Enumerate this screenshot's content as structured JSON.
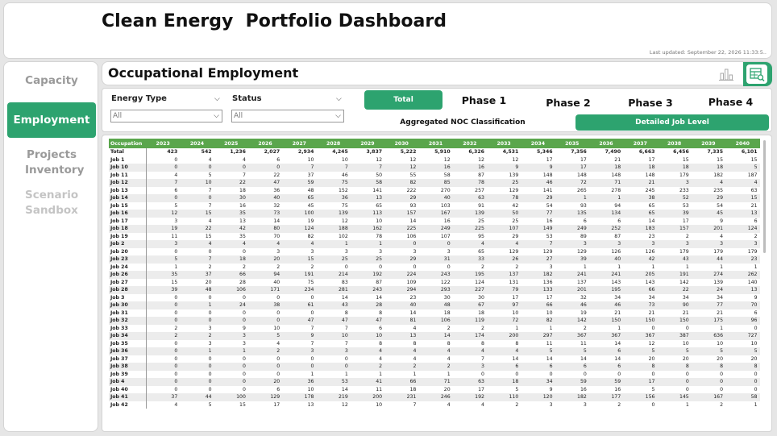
{
  "header": {
    "title": "Clean Energy  Portfolio Dashboard",
    "last_updated": "Last updated: September 22, 2026 11:33:5.."
  },
  "nav": {
    "items": [
      {
        "label": "Capacity"
      },
      {
        "label": "Employment"
      },
      {
        "label": "Projects Inventory"
      },
      {
        "label": "Scenario Sandbox"
      }
    ]
  },
  "section": {
    "title": "Occupational Employment"
  },
  "filters": {
    "energy_type": {
      "label": "Energy Type",
      "value": "All"
    },
    "status": {
      "label": "Status",
      "value": "All"
    }
  },
  "phases": {
    "total": "Total",
    "phase1": "Phase 1",
    "phase2": "Phase 2",
    "phase3": "Phase 3",
    "phase4": "Phase 4"
  },
  "levels": {
    "aggregated": "Aggregated NOC Classification",
    "detailed": "Detailed Job Level"
  },
  "colors": {
    "accent": "#2da36f",
    "table_header": "#5aa64c"
  },
  "icons": {
    "chart": "bar-chart-icon",
    "table": "table-search-icon"
  },
  "table": {
    "columns": [
      "Occupation",
      "2023",
      "2024",
      "2025",
      "2026",
      "2027",
      "2028",
      "2029",
      "2030",
      "2031",
      "2032",
      "2033",
      "2034",
      "2035",
      "2036",
      "2037",
      "2038",
      "2039",
      "2040"
    ],
    "rows": [
      [
        "Total",
        "423",
        "542",
        "1,236",
        "2,027",
        "2,934",
        "4,245",
        "3,837",
        "5,222",
        "5,910",
        "6,326",
        "4,531",
        "5,346",
        "7,356",
        "7,490",
        "6,663",
        "6,456",
        "7,335",
        "6,101"
      ],
      [
        "Job 1",
        "0",
        "4",
        "4",
        "6",
        "10",
        "10",
        "12",
        "12",
        "12",
        "12",
        "12",
        "17",
        "17",
        "21",
        "17",
        "15",
        "15",
        "15"
      ],
      [
        "Job 10",
        "0",
        "0",
        "0",
        "0",
        "7",
        "7",
        "7",
        "12",
        "16",
        "16",
        "9",
        "9",
        "17",
        "18",
        "18",
        "18",
        "18",
        "5"
      ],
      [
        "Job 11",
        "4",
        "5",
        "7",
        "22",
        "37",
        "46",
        "50",
        "55",
        "58",
        "87",
        "139",
        "148",
        "148",
        "148",
        "148",
        "179",
        "182",
        "187"
      ],
      [
        "Job 12",
        "7",
        "10",
        "22",
        "47",
        "59",
        "75",
        "58",
        "82",
        "85",
        "78",
        "25",
        "46",
        "72",
        "71",
        "21",
        "3",
        "4",
        "4"
      ],
      [
        "Job 13",
        "6",
        "7",
        "18",
        "36",
        "48",
        "152",
        "141",
        "222",
        "270",
        "257",
        "129",
        "141",
        "265",
        "278",
        "245",
        "233",
        "235",
        "63"
      ],
      [
        "Job 14",
        "0",
        "0",
        "30",
        "40",
        "65",
        "36",
        "13",
        "29",
        "40",
        "63",
        "78",
        "29",
        "1",
        "1",
        "38",
        "52",
        "29",
        "15"
      ],
      [
        "Job 15",
        "5",
        "7",
        "16",
        "32",
        "45",
        "75",
        "65",
        "93",
        "103",
        "91",
        "42",
        "54",
        "93",
        "94",
        "65",
        "53",
        "54",
        "21"
      ],
      [
        "Job 16",
        "12",
        "15",
        "35",
        "73",
        "100",
        "139",
        "113",
        "157",
        "167",
        "139",
        "50",
        "77",
        "135",
        "134",
        "65",
        "39",
        "45",
        "13"
      ],
      [
        "Job 17",
        "3",
        "4",
        "13",
        "14",
        "19",
        "12",
        "10",
        "14",
        "16",
        "25",
        "25",
        "16",
        "6",
        "6",
        "14",
        "17",
        "9",
        "6"
      ],
      [
        "Job 18",
        "19",
        "22",
        "42",
        "80",
        "124",
        "188",
        "162",
        "225",
        "249",
        "225",
        "107",
        "149",
        "249",
        "252",
        "183",
        "157",
        "201",
        "124"
      ],
      [
        "Job 19",
        "11",
        "15",
        "35",
        "70",
        "82",
        "102",
        "78",
        "106",
        "107",
        "95",
        "29",
        "53",
        "89",
        "87",
        "23",
        "2",
        "4",
        "2"
      ],
      [
        "Job 2",
        "3",
        "4",
        "4",
        "4",
        "4",
        "1",
        "1",
        "0",
        "0",
        "4",
        "4",
        "7",
        "3",
        "3",
        "3",
        "3",
        "3",
        "3"
      ],
      [
        "Job 20",
        "0",
        "0",
        "0",
        "3",
        "3",
        "3",
        "3",
        "3",
        "3",
        "65",
        "129",
        "129",
        "129",
        "126",
        "126",
        "179",
        "179",
        "179"
      ],
      [
        "Job 23",
        "5",
        "7",
        "18",
        "20",
        "15",
        "25",
        "25",
        "29",
        "31",
        "33",
        "26",
        "27",
        "39",
        "40",
        "42",
        "43",
        "44",
        "23"
      ],
      [
        "Job 24",
        "1",
        "2",
        "2",
        "2",
        "2",
        "0",
        "0",
        "0",
        "0",
        "2",
        "2",
        "3",
        "1",
        "1",
        "1",
        "1",
        "1",
        "1"
      ],
      [
        "Job 26",
        "35",
        "37",
        "66",
        "94",
        "191",
        "214",
        "192",
        "224",
        "243",
        "195",
        "137",
        "182",
        "241",
        "241",
        "205",
        "191",
        "274",
        "262"
      ],
      [
        "Job 27",
        "15",
        "20",
        "28",
        "40",
        "75",
        "83",
        "87",
        "109",
        "122",
        "124",
        "131",
        "136",
        "137",
        "143",
        "143",
        "142",
        "139",
        "140"
      ],
      [
        "Job 28",
        "39",
        "48",
        "106",
        "171",
        "234",
        "281",
        "243",
        "294",
        "293",
        "227",
        "79",
        "133",
        "201",
        "195",
        "66",
        "22",
        "24",
        "13"
      ],
      [
        "Job 3",
        "0",
        "0",
        "0",
        "0",
        "0",
        "14",
        "14",
        "23",
        "30",
        "30",
        "17",
        "17",
        "32",
        "34",
        "34",
        "34",
        "34",
        "9"
      ],
      [
        "Job 30",
        "0",
        "1",
        "24",
        "38",
        "61",
        "43",
        "28",
        "40",
        "48",
        "67",
        "97",
        "66",
        "46",
        "46",
        "73",
        "90",
        "77",
        "70"
      ],
      [
        "Job 31",
        "0",
        "0",
        "0",
        "0",
        "0",
        "8",
        "8",
        "14",
        "18",
        "18",
        "10",
        "10",
        "19",
        "21",
        "21",
        "21",
        "21",
        "6"
      ],
      [
        "Job 32",
        "0",
        "0",
        "0",
        "0",
        "47",
        "47",
        "47",
        "81",
        "106",
        "119",
        "72",
        "82",
        "142",
        "150",
        "150",
        "150",
        "175",
        "96"
      ],
      [
        "Job 33",
        "2",
        "3",
        "9",
        "10",
        "7",
        "7",
        "6",
        "4",
        "2",
        "2",
        "1",
        "1",
        "2",
        "1",
        "0",
        "0",
        "1",
        "0"
      ],
      [
        "Job 34",
        "2",
        "2",
        "3",
        "5",
        "9",
        "10",
        "10",
        "13",
        "14",
        "174",
        "200",
        "297",
        "367",
        "367",
        "367",
        "387",
        "636",
        "727"
      ],
      [
        "Job 35",
        "0",
        "3",
        "3",
        "4",
        "7",
        "7",
        "8",
        "8",
        "8",
        "8",
        "8",
        "11",
        "11",
        "14",
        "12",
        "10",
        "10",
        "10"
      ],
      [
        "Job 36",
        "0",
        "1",
        "1",
        "2",
        "3",
        "3",
        "4",
        "4",
        "4",
        "4",
        "4",
        "5",
        "5",
        "6",
        "5",
        "5",
        "5",
        "5"
      ],
      [
        "Job 37",
        "0",
        "0",
        "0",
        "0",
        "0",
        "0",
        "4",
        "4",
        "4",
        "7",
        "14",
        "14",
        "14",
        "14",
        "20",
        "20",
        "20",
        "20"
      ],
      [
        "Job 38",
        "0",
        "0",
        "0",
        "0",
        "0",
        "0",
        "2",
        "2",
        "2",
        "3",
        "6",
        "6",
        "6",
        "6",
        "8",
        "8",
        "8",
        "8"
      ],
      [
        "Job 39",
        "0",
        "0",
        "0",
        "0",
        "1",
        "1",
        "1",
        "1",
        "1",
        "0",
        "0",
        "0",
        "0",
        "0",
        "0",
        "0",
        "0",
        "0"
      ],
      [
        "Job 4",
        "0",
        "0",
        "0",
        "20",
        "36",
        "53",
        "41",
        "66",
        "71",
        "63",
        "18",
        "34",
        "59",
        "59",
        "17",
        "0",
        "0",
        "0"
      ],
      [
        "Job 40",
        "0",
        "0",
        "0",
        "6",
        "10",
        "14",
        "11",
        "18",
        "20",
        "17",
        "5",
        "9",
        "16",
        "16",
        "5",
        "0",
        "0",
        "0"
      ],
      [
        "Job 41",
        "37",
        "44",
        "100",
        "129",
        "178",
        "219",
        "200",
        "231",
        "246",
        "192",
        "110",
        "120",
        "182",
        "177",
        "156",
        "145",
        "167",
        "58"
      ],
      [
        "Job 42",
        "4",
        "5",
        "15",
        "17",
        "13",
        "12",
        "10",
        "7",
        "4",
        "4",
        "2",
        "3",
        "3",
        "2",
        "0",
        "1",
        "2",
        "1"
      ]
    ]
  }
}
